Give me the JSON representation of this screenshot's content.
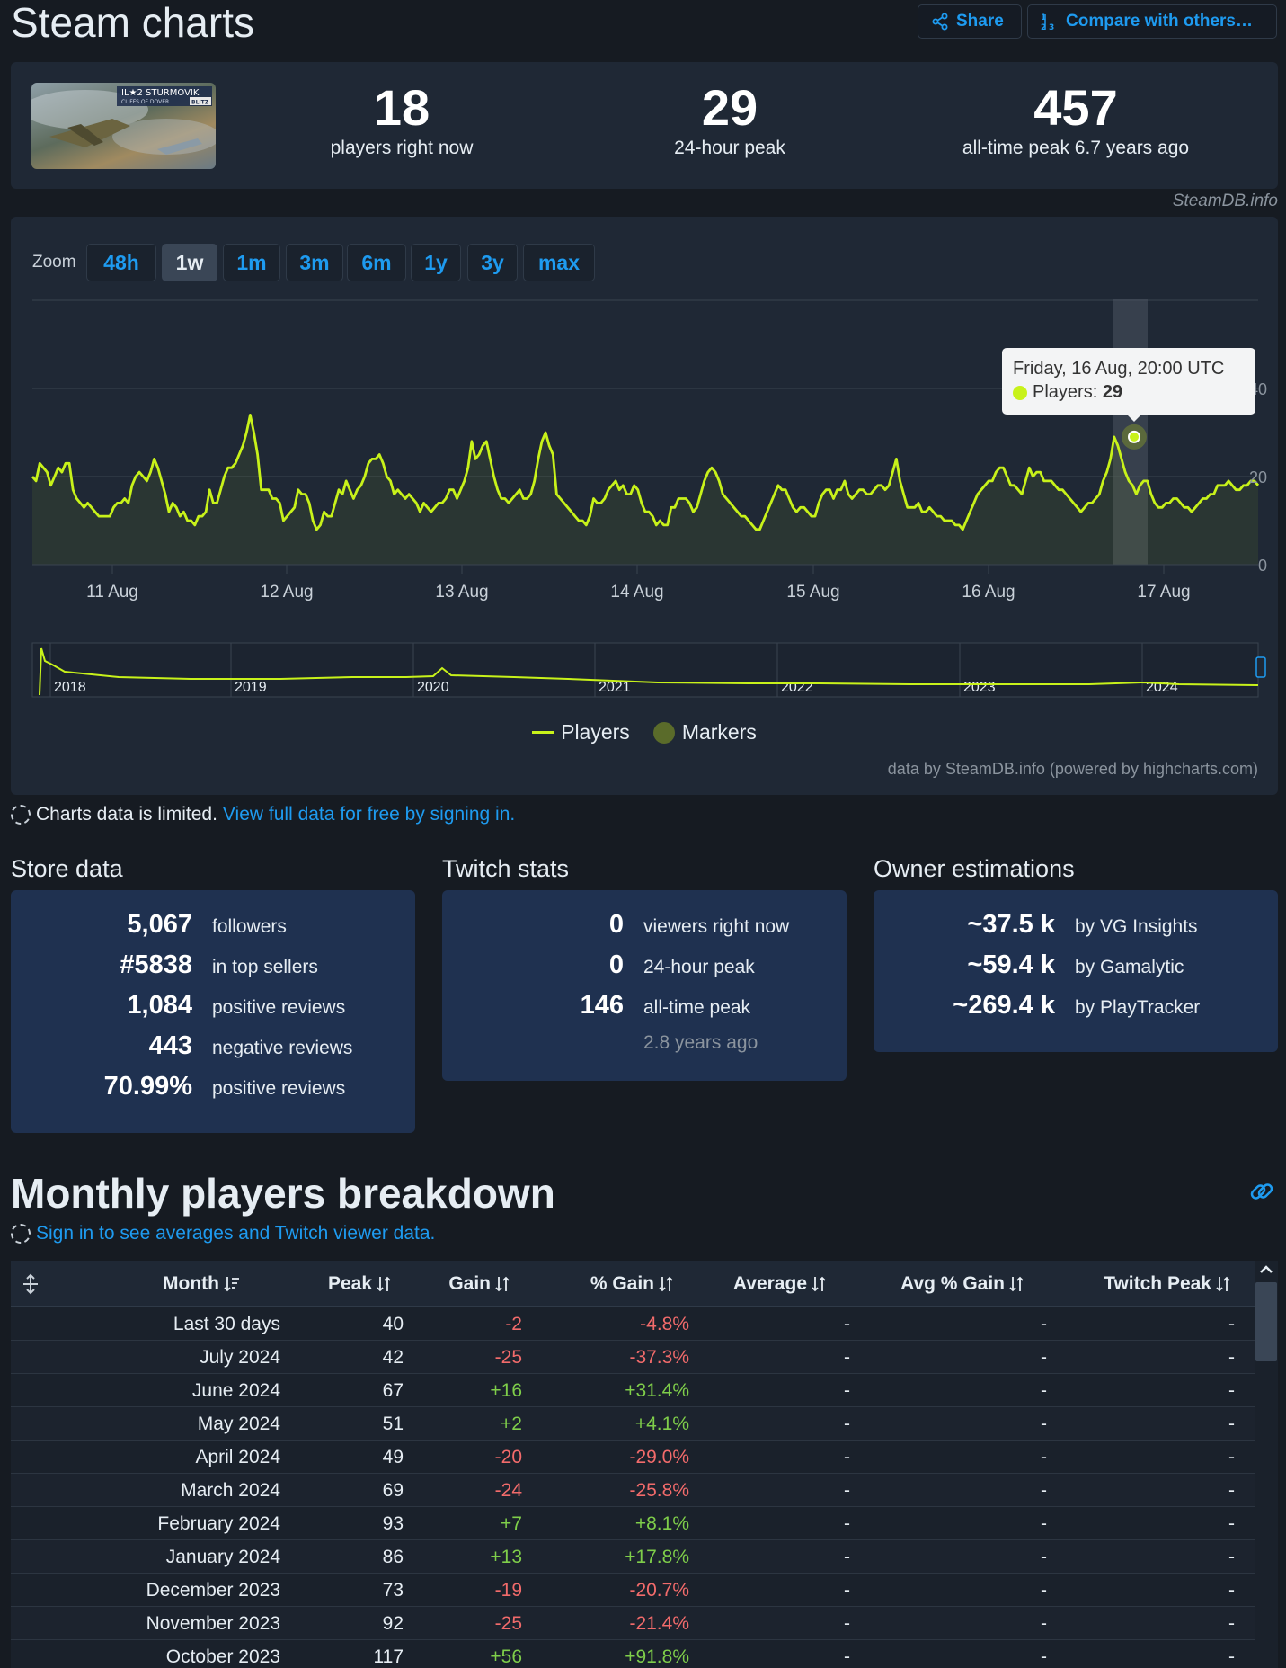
{
  "header": {
    "title": "Steam charts",
    "share_label": "Share",
    "compare_label": "Compare with others…"
  },
  "app": {
    "thumbnail_text": "IL★2 STURMOVIK",
    "thumbnail_sub": "CLIFFS OF DOVER",
    "thumbnail_badge": "BLITZ",
    "players_now": "18",
    "players_now_label": "players right now",
    "peak_24h": "29",
    "peak_24h_label": "24-hour peak",
    "alltime_peak": "457",
    "alltime_peak_label": "all-time peak 6.7 years ago",
    "credit": "SteamDB.info"
  },
  "chart": {
    "zoom_label": "Zoom",
    "zoom_options": [
      "48h",
      "1w",
      "1m",
      "3m",
      "6m",
      "1y",
      "3y",
      "max"
    ],
    "zoom_active": "1w",
    "tooltip_date": "Friday, 16 Aug, 20:00 UTC",
    "tooltip_series": "Players:",
    "tooltip_value": "29",
    "legend_players": "Players",
    "legend_markers": "Markers",
    "credit": "data by SteamDB.info (powered by highcharts.com)",
    "line_color": "#c8f21a"
  },
  "chart_data": {
    "type": "line",
    "x_ticks": [
      "11 Aug",
      "12 Aug",
      "13 Aug",
      "14 Aug",
      "15 Aug",
      "16 Aug",
      "17 Aug"
    ],
    "y_ticks": [
      0,
      20,
      40
    ],
    "ylim": [
      0,
      60
    ],
    "grid": true,
    "series": [
      {
        "name": "Players",
        "values": [
          20,
          19,
          23,
          22,
          21,
          18,
          20,
          22,
          21,
          23,
          23,
          17,
          15,
          14,
          13,
          14,
          13,
          12,
          11,
          11,
          11,
          11,
          13,
          14,
          14,
          15,
          14,
          18,
          20,
          21,
          20,
          19,
          21,
          24,
          22,
          19,
          16,
          12,
          14,
          13,
          11,
          12,
          10,
          10,
          9,
          11,
          11,
          12,
          17,
          14,
          14,
          17,
          20,
          22,
          22,
          23,
          25,
          27,
          30,
          34,
          30,
          25,
          17,
          17,
          17,
          15,
          15,
          14,
          10,
          11,
          12,
          13,
          17,
          16,
          16,
          14,
          10,
          8,
          9,
          12,
          11,
          11,
          14,
          17,
          16,
          19,
          17,
          15,
          17,
          18,
          20,
          23,
          24,
          24,
          25,
          23,
          20,
          19,
          16,
          17,
          16,
          15,
          16,
          15,
          14,
          12,
          14,
          13,
          12,
          13,
          14,
          14,
          15,
          17,
          17,
          15,
          17,
          19,
          22,
          28,
          24,
          25,
          27,
          28,
          24,
          20,
          17,
          15,
          15,
          14,
          15,
          16,
          17,
          15,
          15,
          16,
          19,
          24,
          28,
          30,
          27,
          25,
          16,
          15,
          14,
          13,
          12,
          11,
          10,
          10,
          9,
          11,
          15,
          14,
          14,
          15,
          17,
          18,
          19,
          17,
          18,
          16,
          16,
          18,
          17,
          14,
          12,
          12,
          11,
          9,
          10,
          9,
          9,
          13,
          13,
          15,
          15,
          15,
          14,
          12,
          13,
          16,
          19,
          21,
          22,
          21,
          19,
          16,
          15,
          14,
          13,
          12,
          11,
          11,
          10,
          9,
          8,
          8,
          10,
          12,
          14,
          16,
          18,
          17,
          17,
          15,
          13,
          12,
          13,
          13,
          12,
          11,
          11,
          14,
          16,
          17,
          17,
          15,
          17,
          17,
          19,
          16,
          15,
          16,
          17,
          17,
          16,
          16,
          17,
          18,
          18,
          17,
          18,
          21,
          24,
          19,
          16,
          13,
          13,
          13,
          14,
          12,
          12,
          13,
          12,
          11,
          11,
          10,
          10,
          10,
          9,
          9,
          8,
          10,
          12,
          14,
          16,
          17,
          18,
          19,
          19,
          21,
          22,
          22,
          20,
          18,
          18,
          17,
          16,
          19,
          22,
          20,
          21,
          21,
          19,
          19,
          19,
          18,
          17,
          17,
          16,
          15,
          14,
          13,
          12,
          13,
          14,
          14,
          15,
          16,
          19,
          21,
          24,
          29,
          27,
          24,
          21,
          19,
          18,
          16,
          18,
          19,
          19,
          16,
          14,
          13,
          13,
          14,
          14,
          15,
          15,
          14,
          13,
          13,
          12,
          13,
          14,
          15,
          15,
          16,
          16,
          18,
          18,
          18,
          19,
          18,
          17,
          17,
          18,
          18,
          19,
          19,
          18
        ]
      }
    ],
    "navigator_years": [
      "2018",
      "2019",
      "2020",
      "2021",
      "2022",
      "2023",
      "2024"
    ]
  },
  "limited_note": {
    "text": "Charts data is limited.",
    "link": "View full data for free by signing in."
  },
  "store": {
    "title": "Store data",
    "rows": [
      {
        "value": "5,067",
        "label": "followers"
      },
      {
        "value": "#5838",
        "label": "in top sellers"
      },
      {
        "value": "1,084",
        "label": "positive reviews"
      },
      {
        "value": "443",
        "label": "negative reviews"
      },
      {
        "value": "70.99%",
        "label": "positive reviews"
      }
    ]
  },
  "twitch": {
    "title": "Twitch stats",
    "rows": [
      {
        "value": "0",
        "label": "viewers right now"
      },
      {
        "value": "0",
        "label": "24-hour peak"
      },
      {
        "value": "146",
        "label": "all-time peak"
      }
    ],
    "sub": "2.8 years ago"
  },
  "owners": {
    "title": "Owner estimations",
    "rows": [
      {
        "value": "~37.5 k",
        "label": "by VG Insights"
      },
      {
        "value": "~59.4 k",
        "label": "by Gamalytic"
      },
      {
        "value": "~269.4 k",
        "label": "by PlayTracker"
      }
    ]
  },
  "monthly": {
    "title": "Monthly players breakdown",
    "signin_note": "Sign in to see averages and Twitch viewer data.",
    "columns": [
      "Month",
      "Peak",
      "Gain",
      "% Gain",
      "Average",
      "Avg % Gain",
      "Twitch Peak"
    ],
    "rows": [
      {
        "month": "Last 30 days",
        "peak": "40",
        "gain": "-2",
        "pgain": "-4.8%",
        "avg": "-",
        "avgp": "-",
        "twitch": "-"
      },
      {
        "month": "July 2024",
        "peak": "42",
        "gain": "-25",
        "pgain": "-37.3%",
        "avg": "-",
        "avgp": "-",
        "twitch": "-"
      },
      {
        "month": "June 2024",
        "peak": "67",
        "gain": "+16",
        "pgain": "+31.4%",
        "avg": "-",
        "avgp": "-",
        "twitch": "-"
      },
      {
        "month": "May 2024",
        "peak": "51",
        "gain": "+2",
        "pgain": "+4.1%",
        "avg": "-",
        "avgp": "-",
        "twitch": "-"
      },
      {
        "month": "April 2024",
        "peak": "49",
        "gain": "-20",
        "pgain": "-29.0%",
        "avg": "-",
        "avgp": "-",
        "twitch": "-"
      },
      {
        "month": "March 2024",
        "peak": "69",
        "gain": "-24",
        "pgain": "-25.8%",
        "avg": "-",
        "avgp": "-",
        "twitch": "-"
      },
      {
        "month": "February 2024",
        "peak": "93",
        "gain": "+7",
        "pgain": "+8.1%",
        "avg": "-",
        "avgp": "-",
        "twitch": "-"
      },
      {
        "month": "January 2024",
        "peak": "86",
        "gain": "+13",
        "pgain": "+17.8%",
        "avg": "-",
        "avgp": "-",
        "twitch": "-"
      },
      {
        "month": "December 2023",
        "peak": "73",
        "gain": "-19",
        "pgain": "-20.7%",
        "avg": "-",
        "avgp": "-",
        "twitch": "-"
      },
      {
        "month": "November 2023",
        "peak": "92",
        "gain": "-25",
        "pgain": "-21.4%",
        "avg": "-",
        "avgp": "-",
        "twitch": "-"
      },
      {
        "month": "October 2023",
        "peak": "117",
        "gain": "+56",
        "pgain": "+91.8%",
        "avg": "-",
        "avgp": "-",
        "twitch": "-"
      }
    ]
  }
}
